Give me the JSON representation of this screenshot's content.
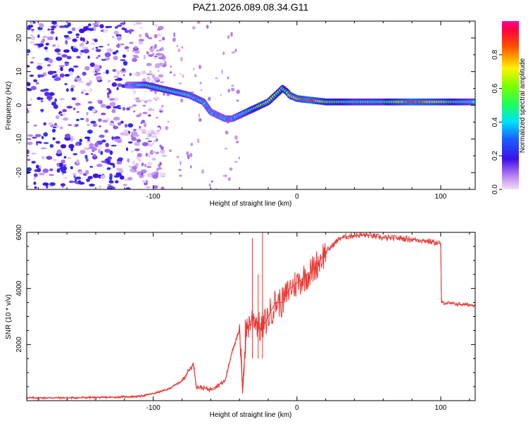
{
  "title": "PAZ1.2026.089.08.34.G11",
  "chart_data": [
    {
      "type": "heatmap",
      "name": "spectrogram",
      "xlabel": "Height of straight line (km)",
      "ylabel": "Frequency (Hz)",
      "xlim": [
        -188,
        124
      ],
      "ylim": [
        -25,
        25
      ],
      "x_ticks": [
        -100,
        0,
        100
      ],
      "y_ticks": [
        -20,
        -10,
        0,
        10,
        20
      ],
      "colorbar": {
        "label": "Normalized spectral amplitude",
        "range": [
          0,
          1
        ],
        "ticks": [
          "0.0",
          "0.2",
          "0.4",
          "0.6",
          "0.8"
        ],
        "tick_values": [
          0.0,
          0.2,
          0.4,
          0.6,
          0.8
        ]
      },
      "ridge": {
        "description": "dominant frequency trace",
        "x": [
          -115,
          -105,
          -95,
          -85,
          -75,
          -70,
          -65,
          -60,
          -55,
          -50,
          -45,
          -40,
          -35,
          -30,
          -25,
          -20,
          -15,
          -10,
          -7,
          -5,
          0,
          10,
          20,
          40,
          60,
          80,
          100,
          110,
          124
        ],
        "frequency": [
          6,
          6,
          5,
          4,
          3,
          2,
          1,
          -2,
          -3,
          -4,
          -4,
          -3,
          -2,
          -1,
          0,
          1,
          3,
          5,
          4,
          3,
          2,
          1.5,
          1,
          1,
          1,
          1,
          1,
          1,
          1
        ],
        "amplitude": [
          0.3,
          0.45,
          0.45,
          0.45,
          0.4,
          0.4,
          0.4,
          0.35,
          0.35,
          0.35,
          0.35,
          0.4,
          0.45,
          0.5,
          0.6,
          0.65,
          0.6,
          0.55,
          0.5,
          0.75,
          0.8,
          0.9,
          0.6,
          0.45,
          0.45,
          0.9,
          0.7,
          0.5,
          0.4
        ]
      },
      "noise_region": {
        "x_from": -188,
        "x_to": -100,
        "amplitude_max": 0.25
      }
    },
    {
      "type": "line",
      "name": "snr",
      "xlabel": "Height of straight line (km)",
      "ylabel": "SNR (10 * v/v)",
      "xlim": [
        -188,
        124
      ],
      "ylim": [
        0,
        6000
      ],
      "x_ticks": [
        -100,
        0,
        100
      ],
      "y_ticks": [
        2000,
        4000,
        6000
      ],
      "color": "#e53935",
      "series": [
        {
          "name": "SNR",
          "x": [
            -188,
            -160,
            -130,
            -110,
            -100,
            -90,
            -80,
            -75,
            -72,
            -70,
            -60,
            -50,
            -45,
            -40,
            -38,
            -35,
            -30,
            -25,
            -20,
            -15,
            -10,
            -5,
            0,
            10,
            20,
            30,
            40,
            50,
            60,
            70,
            80,
            90,
            100,
            100.5,
            110,
            124
          ],
          "y": [
            100,
            100,
            120,
            150,
            250,
            400,
            700,
            1100,
            1300,
            500,
            400,
            700,
            1800,
            2500,
            500,
            2600,
            3000,
            2500,
            3000,
            3500,
            3500,
            4000,
            4200,
            4600,
            5300,
            5800,
            5900,
            5900,
            5800,
            5800,
            5750,
            5700,
            5600,
            3500,
            3450,
            3400
          ]
        }
      ],
      "spikes": {
        "x": [
          -36,
          -31,
          -27,
          -24
        ],
        "y": [
          2900,
          5800,
          4500,
          6000
        ]
      }
    }
  ],
  "colors": {
    "trace": "#e53935",
    "frame": "#000000"
  }
}
